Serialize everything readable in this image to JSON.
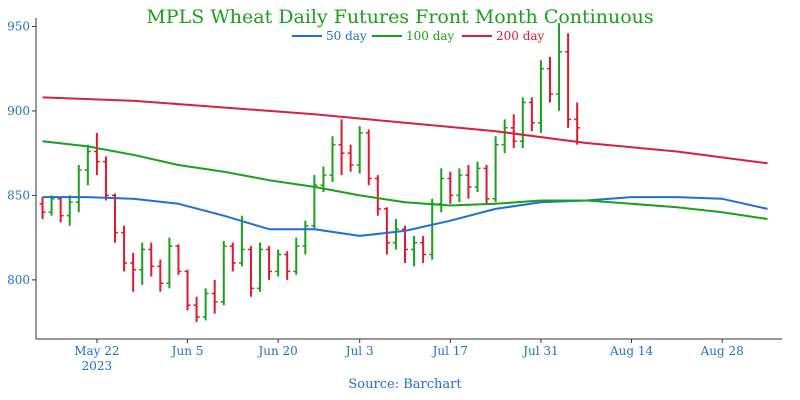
{
  "chart_data": {
    "type": "line",
    "title": "MPLS Wheat Daily Futures Front Month Continuous",
    "source": "Source: Barchart",
    "ylim": [
      765,
      955
    ],
    "y_ticks": [
      800,
      850,
      900,
      950
    ],
    "x_ticks": [
      {
        "x": 6,
        "label": "May 22",
        "sublabel": "2023"
      },
      {
        "x": 16,
        "label": "Jun 5",
        "sublabel": ""
      },
      {
        "x": 26,
        "label": "Jun 20",
        "sublabel": ""
      },
      {
        "x": 35,
        "label": "Jul 3",
        "sublabel": ""
      },
      {
        "x": 45,
        "label": "Jul 17",
        "sublabel": ""
      },
      {
        "x": 55,
        "label": "Jul 31",
        "sublabel": ""
      },
      {
        "x": 65,
        "label": "Aug 14",
        "sublabel": ""
      },
      {
        "x": 75,
        "label": "Aug 28",
        "sublabel": ""
      }
    ],
    "x_range": [
      -0.5,
      80.5
    ],
    "grid": false,
    "legend_position": "top-center",
    "colors": {
      "title": "#1aa01a",
      "tick": "#1f6fd6",
      "up": "#1aa01a",
      "down": "#e0192d",
      "ma50": "#1f6fd6",
      "ma100": "#1aa01a",
      "ma200": "#d8203a",
      "axis": "#333333"
    },
    "series": [
      {
        "name": "50 day",
        "color": "#1f6fd6",
        "x": [
          0,
          5,
          10,
          15,
          20,
          25,
          30,
          35,
          40,
          45,
          50,
          55,
          60,
          65,
          70,
          75,
          80
        ],
        "values": [
          849,
          849,
          848,
          845,
          838,
          830,
          830,
          826,
          829,
          835,
          842,
          846,
          847,
          849,
          849,
          848,
          842
        ]
      },
      {
        "name": "100 day",
        "color": "#1aa01a",
        "x": [
          0,
          5,
          10,
          15,
          20,
          25,
          30,
          35,
          40,
          45,
          50,
          55,
          60,
          65,
          70,
          75,
          80
        ],
        "values": [
          882,
          879,
          874,
          868,
          864,
          859,
          855,
          850,
          846,
          844,
          845,
          847,
          847,
          845,
          843,
          840,
          836
        ]
      },
      {
        "name": "200 day",
        "color": "#d8203a",
        "x": [
          0,
          10,
          20,
          30,
          40,
          50,
          60,
          70,
          80
        ],
        "values": [
          908,
          906,
          902,
          898,
          893,
          888,
          881,
          876,
          869
        ]
      }
    ],
    "ohlc": [
      [
        845,
        849,
        836,
        840
      ],
      [
        840,
        850,
        838,
        848
      ],
      [
        848,
        849,
        834,
        838
      ],
      [
        838,
        850,
        832,
        846
      ],
      [
        846,
        868,
        840,
        865
      ],
      [
        865,
        880,
        856,
        876
      ],
      [
        876,
        887,
        862,
        870
      ],
      [
        870,
        873,
        847,
        850
      ],
      [
        850,
        851,
        822,
        828
      ],
      [
        828,
        832,
        805,
        810
      ],
      [
        810,
        816,
        793,
        806
      ],
      [
        806,
        822,
        797,
        818
      ],
      [
        818,
        822,
        802,
        808
      ],
      [
        808,
        812,
        793,
        798
      ],
      [
        798,
        825,
        795,
        820
      ],
      [
        820,
        821,
        803,
        805
      ],
      [
        805,
        806,
        782,
        785
      ],
      [
        785,
        790,
        775,
        778
      ],
      [
        778,
        795,
        776,
        792
      ],
      [
        792,
        800,
        780,
        787
      ],
      [
        787,
        823,
        785,
        820
      ],
      [
        820,
        822,
        805,
        810
      ],
      [
        810,
        838,
        808,
        818
      ],
      [
        818,
        820,
        790,
        795
      ],
      [
        795,
        822,
        793,
        818
      ],
      [
        818,
        820,
        800,
        805
      ],
      [
        805,
        818,
        802,
        815
      ],
      [
        815,
        817,
        800,
        805
      ],
      [
        805,
        825,
        803,
        820
      ],
      [
        820,
        835,
        815,
        832
      ],
      [
        832,
        862,
        830,
        856
      ],
      [
        856,
        867,
        852,
        862
      ],
      [
        862,
        885,
        858,
        880
      ],
      [
        880,
        895,
        862,
        875
      ],
      [
        875,
        880,
        864,
        868
      ],
      [
        868,
        891,
        863,
        887
      ],
      [
        887,
        889,
        856,
        860
      ],
      [
        860,
        862,
        838,
        842
      ],
      [
        842,
        843,
        815,
        822
      ],
      [
        822,
        836,
        818,
        830
      ],
      [
        830,
        832,
        810,
        818
      ],
      [
        818,
        826,
        808,
        822
      ],
      [
        822,
        826,
        810,
        815
      ],
      [
        815,
        848,
        812,
        845
      ],
      [
        845,
        866,
        840,
        860
      ],
      [
        860,
        864,
        845,
        850
      ],
      [
        850,
        866,
        846,
        862
      ],
      [
        862,
        868,
        848,
        855
      ],
      [
        855,
        870,
        852,
        866
      ],
      [
        866,
        868,
        845,
        848
      ],
      [
        848,
        885,
        846,
        880
      ],
      [
        880,
        895,
        875,
        890
      ],
      [
        890,
        898,
        878,
        882
      ],
      [
        882,
        908,
        878,
        905
      ],
      [
        905,
        908,
        888,
        893
      ],
      [
        893,
        930,
        887,
        925
      ],
      [
        925,
        932,
        905,
        910
      ],
      [
        910,
        952,
        900,
        935
      ],
      [
        935,
        946,
        890,
        895
      ],
      [
        895,
        905,
        880,
        890
      ]
    ]
  }
}
